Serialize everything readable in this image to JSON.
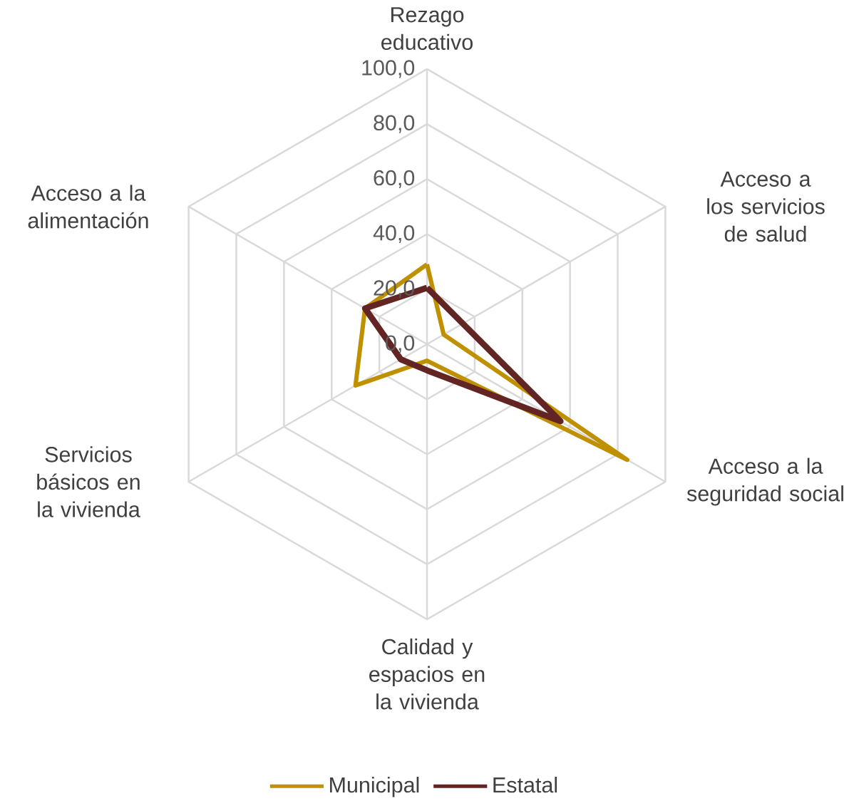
{
  "chart_data": {
    "type": "radar",
    "categories": [
      "Rezago educativo",
      "Acceso a los servicios de salud",
      "Acceso a la seguridad social",
      "Calidad y espacios en la vivienda",
      "Servicios básicos en la vivienda",
      "Acceso a la alimentación"
    ],
    "series": [
      {
        "name": "Municipal",
        "color": "#bf9000",
        "values": [
          29,
          7,
          84,
          6,
          30,
          26
        ]
      },
      {
        "name": "Estatal",
        "color": "#632523",
        "values": [
          20.5,
          15,
          56,
          9.5,
          11,
          26
        ]
      }
    ],
    "ylim": [
      0,
      100
    ],
    "yticks": [
      {
        "value": 0,
        "label": "0,0"
      },
      {
        "value": 20,
        "label": "20,0"
      },
      {
        "value": 40,
        "label": "40,0"
      },
      {
        "value": 60,
        "label": "60,0"
      },
      {
        "value": 80,
        "label": "80,0"
      },
      {
        "value": 100,
        "label": "100,0"
      }
    ],
    "grid": true,
    "legend": "bottom",
    "marker": "none",
    "line_style": "solid"
  }
}
